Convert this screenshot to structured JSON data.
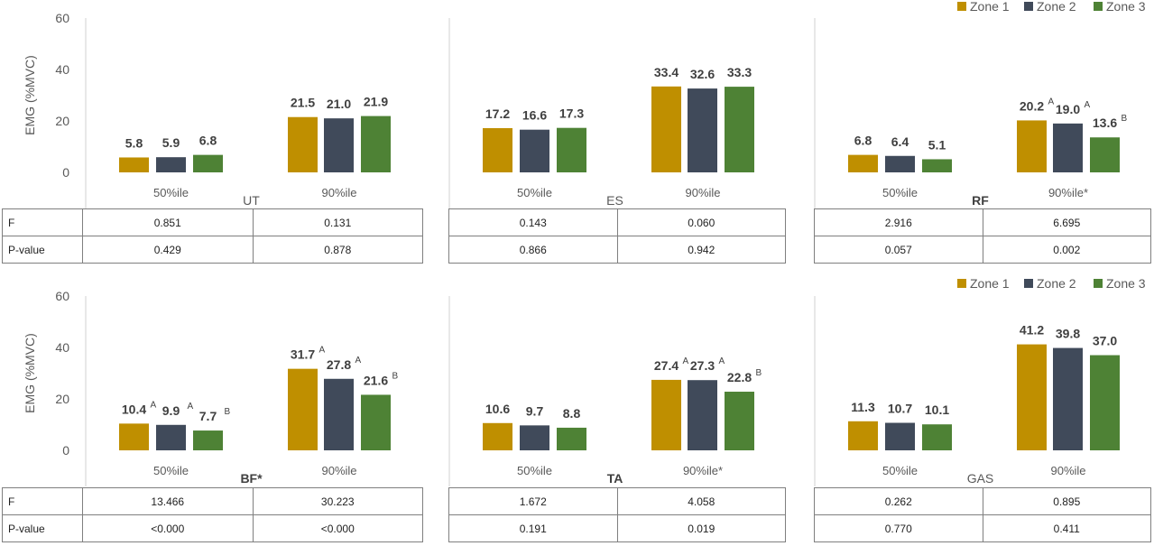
{
  "colors": {
    "zone1": "#bf8f00",
    "zone2": "#404a5a",
    "zone3": "#4e8235"
  },
  "legend": [
    "Zone 1",
    "Zone 2",
    "Zone 3"
  ],
  "y_axis_label": "EMG (%MVC)",
  "row_labels": [
    "F",
    "P-value"
  ],
  "chart_data": [
    {
      "type": "bar",
      "title": "UT",
      "categories": [
        "50%ile",
        "90%ile"
      ],
      "ylim": [
        0,
        60
      ],
      "yticks": [
        0,
        20,
        40,
        60
      ],
      "series": [
        {
          "name": "Zone 1",
          "values": [
            5.8,
            21.5
          ],
          "labels": [
            "5.8",
            "21.5"
          ],
          "sup": [
            "",
            ""
          ]
        },
        {
          "name": "Zone 2",
          "values": [
            5.9,
            21.0
          ],
          "labels": [
            "5.9",
            "21.0"
          ],
          "sup": [
            "",
            ""
          ]
        },
        {
          "name": "Zone 3",
          "values": [
            6.8,
            21.9
          ],
          "labels": [
            "6.8",
            "21.9"
          ],
          "sup": [
            "",
            ""
          ]
        }
      ],
      "stats": {
        "F": [
          "0.851",
          "0.131"
        ],
        "P-value": [
          "0.429",
          "0.878"
        ]
      }
    },
    {
      "type": "bar",
      "title": "ES",
      "categories": [
        "50%ile",
        "90%ile"
      ],
      "ylim": [
        0,
        60
      ],
      "yticks": [
        0,
        20,
        40,
        60
      ],
      "series": [
        {
          "name": "Zone 1",
          "values": [
            17.2,
            33.4
          ],
          "labels": [
            "17.2",
            "33.4"
          ],
          "sup": [
            "",
            ""
          ]
        },
        {
          "name": "Zone 2",
          "values": [
            16.6,
            32.6
          ],
          "labels": [
            "16.6",
            "32.6"
          ],
          "sup": [
            "",
            ""
          ]
        },
        {
          "name": "Zone 3",
          "values": [
            17.3,
            33.3
          ],
          "labels": [
            "17.3",
            "33.3"
          ],
          "sup": [
            "",
            ""
          ]
        }
      ],
      "stats": {
        "F": [
          "0.143",
          "0.060"
        ],
        "P-value": [
          "0.866",
          "0.942"
        ]
      }
    },
    {
      "type": "bar",
      "title": "RF",
      "categories": [
        "50%ile",
        "90%ile*"
      ],
      "ylim": [
        0,
        60
      ],
      "yticks": [
        0,
        20,
        40,
        60
      ],
      "series": [
        {
          "name": "Zone 1",
          "values": [
            6.8,
            20.2
          ],
          "labels": [
            "6.8",
            "20.2"
          ],
          "sup": [
            "",
            "A"
          ]
        },
        {
          "name": "Zone 2",
          "values": [
            6.4,
            19.0
          ],
          "labels": [
            "6.4",
            "19.0"
          ],
          "sup": [
            "",
            "A"
          ]
        },
        {
          "name": "Zone 3",
          "values": [
            5.1,
            13.6
          ],
          "labels": [
            "5.1",
            "13.6"
          ],
          "sup": [
            "",
            "B"
          ]
        }
      ],
      "stats": {
        "F": [
          "2.916",
          "6.695"
        ],
        "P-value": [
          "0.057",
          "0.002"
        ]
      }
    },
    {
      "type": "bar",
      "title": "BF*",
      "categories": [
        "50%ile",
        "90%ile"
      ],
      "ylim": [
        0,
        60
      ],
      "yticks": [
        0,
        20,
        40,
        60
      ],
      "series": [
        {
          "name": "Zone 1",
          "values": [
            10.4,
            31.7
          ],
          "labels": [
            "10.4",
            "31.7"
          ],
          "sup": [
            "A",
            "A"
          ]
        },
        {
          "name": "Zone 2",
          "values": [
            9.9,
            27.8
          ],
          "labels": [
            "9.9",
            "27.8"
          ],
          "sup": [
            "A",
            "A"
          ]
        },
        {
          "name": "Zone 3",
          "values": [
            7.7,
            21.6
          ],
          "labels": [
            "7.7",
            "21.6"
          ],
          "sup": [
            "B",
            "B"
          ]
        }
      ],
      "stats": {
        "F": [
          "13.466",
          "30.223"
        ],
        "P-value": [
          "<0.000",
          "<0.000"
        ]
      }
    },
    {
      "type": "bar",
      "title": "TA",
      "categories": [
        "50%ile",
        "90%ile*"
      ],
      "ylim": [
        0,
        60
      ],
      "yticks": [
        0,
        20,
        40,
        60
      ],
      "series": [
        {
          "name": "Zone 1",
          "values": [
            10.6,
            27.4
          ],
          "labels": [
            "10.6",
            "27.4"
          ],
          "sup": [
            "",
            "A"
          ]
        },
        {
          "name": "Zone 2",
          "values": [
            9.7,
            27.3
          ],
          "labels": [
            "9.7",
            "27.3"
          ],
          "sup": [
            "",
            "A"
          ]
        },
        {
          "name": "Zone 3",
          "values": [
            8.8,
            22.8
          ],
          "labels": [
            "8.8",
            "22.8"
          ],
          "sup": [
            "",
            "B"
          ]
        }
      ],
      "stats": {
        "F": [
          "1.672",
          "4.058"
        ],
        "P-value": [
          "0.191",
          "0.019"
        ]
      }
    },
    {
      "type": "bar",
      "title": "GAS",
      "categories": [
        "50%ile",
        "90%ile"
      ],
      "ylim": [
        0,
        60
      ],
      "yticks": [
        0,
        20,
        40,
        60
      ],
      "series": [
        {
          "name": "Zone 1",
          "values": [
            11.3,
            41.2
          ],
          "labels": [
            "11.3",
            "41.2"
          ],
          "sup": [
            "",
            ""
          ]
        },
        {
          "name": "Zone 2",
          "values": [
            10.7,
            39.8
          ],
          "labels": [
            "10.7",
            "39.8"
          ],
          "sup": [
            "",
            ""
          ]
        },
        {
          "name": "Zone 3",
          "values": [
            10.1,
            37.0
          ],
          "labels": [
            "10.1",
            "37.0"
          ],
          "sup": [
            "",
            ""
          ]
        }
      ],
      "stats": {
        "F": [
          "0.262",
          "0.895"
        ],
        "P-value": [
          "0.770",
          "0.411"
        ]
      }
    }
  ]
}
